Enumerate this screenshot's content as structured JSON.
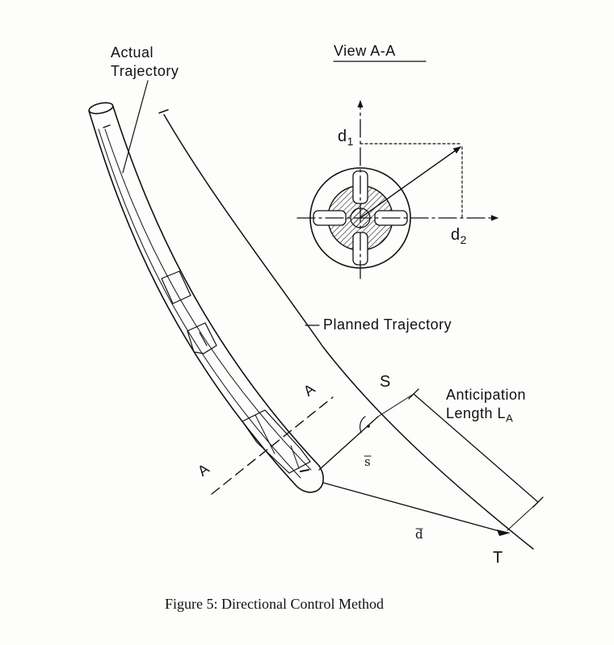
{
  "labels": {
    "actual_trajectory_1": "Actual",
    "actual_trajectory_2": "Trajectory",
    "view_title": "View A-A",
    "d1": "d",
    "d1_sub": "1",
    "d2": "d",
    "d2_sub": "2",
    "planned_trajectory": "Planned Trajectory",
    "point_s": "S",
    "section_a_upper": "A",
    "section_a_lower": "A",
    "anticipation_1": "Anticipation",
    "anticipation_2": "Length L",
    "anticipation_sub": "A",
    "vec_s": "s",
    "vec_d": "d",
    "point_t": "T",
    "right_angle": "(·)"
  },
  "caption": "Figure 5: Directional Control Method"
}
